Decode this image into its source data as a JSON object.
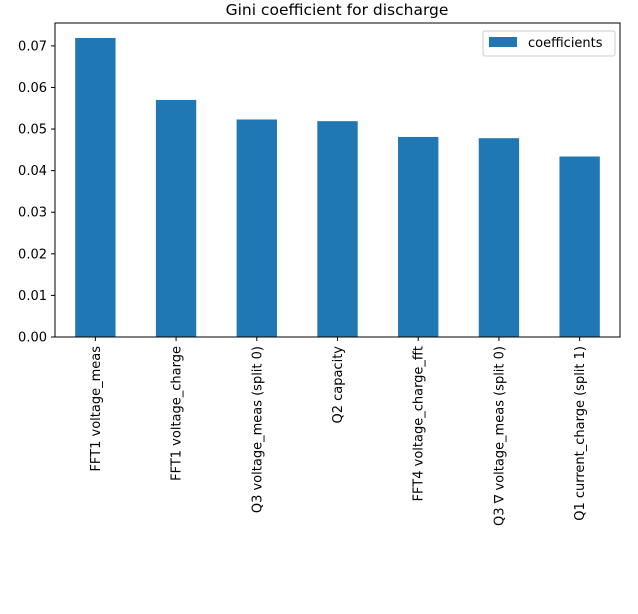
{
  "chart_data": {
    "type": "bar",
    "title": "Gini coefficient for discharge",
    "xlabel": "",
    "ylabel": "",
    "categories": [
      "FFT1 voltage_meas",
      "FFT1 voltage_charge",
      "Q3 voltage_meas (split 0)",
      "Q2 capacity",
      "FFT4 voltage_charge_fft",
      "Q3 ∇ voltage_meas (split 0)",
      "Q1 current_charge (split 1)"
    ],
    "series": [
      {
        "name": "coefficients",
        "color": "#1f77b4",
        "values": [
          0.0719,
          0.057,
          0.0523,
          0.0519,
          0.0481,
          0.0478,
          0.0434
        ]
      }
    ],
    "yticks": [
      "0.00",
      "0.01",
      "0.02",
      "0.03",
      "0.04",
      "0.05",
      "0.06",
      "0.07"
    ],
    "ylim": [
      0,
      0.0755
    ],
    "grid": false,
    "legend_position": "top-right"
  }
}
